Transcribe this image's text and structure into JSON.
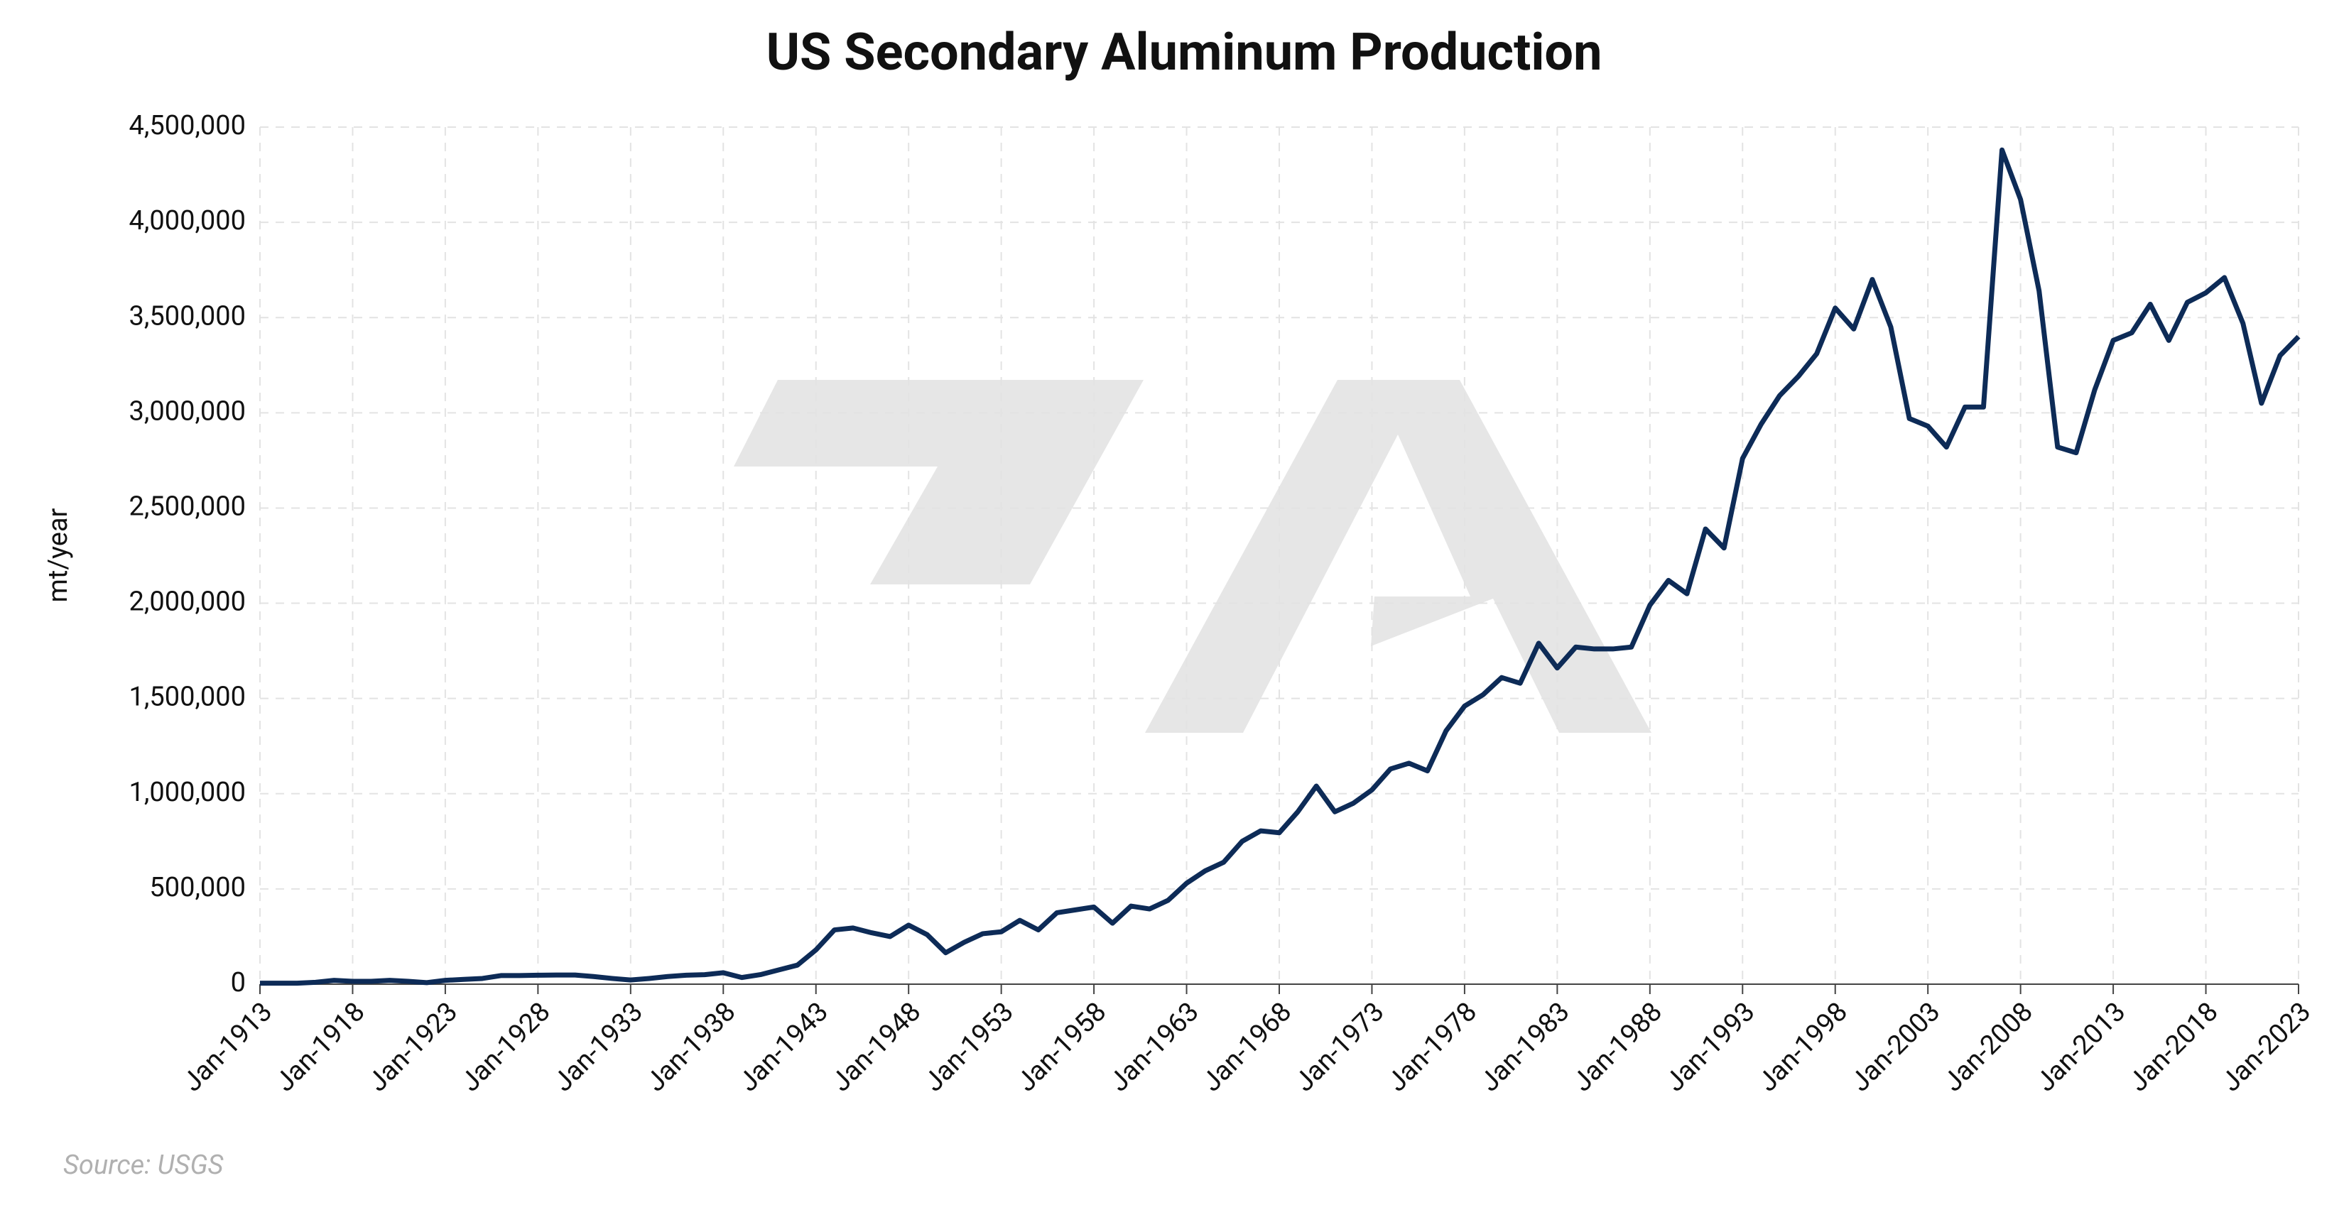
{
  "chart_data": {
    "type": "line",
    "title": "US Secondary Aluminum Production",
    "y_label": "mt/year",
    "source": "Source: USGS",
    "categories": [
      "Jan-1913",
      null,
      null,
      null,
      null,
      "Jan-1918",
      null,
      null,
      null,
      null,
      "Jan-1923",
      null,
      null,
      null,
      null,
      "Jan-1928",
      null,
      null,
      null,
      null,
      "Jan-1933",
      null,
      null,
      null,
      null,
      "Jan-1938",
      null,
      null,
      null,
      null,
      "Jan-1943",
      null,
      null,
      null,
      null,
      "Jan-1948",
      null,
      null,
      null,
      null,
      "Jan-1953",
      null,
      null,
      null,
      null,
      "Jan-1958",
      null,
      null,
      null,
      null,
      "Jan-1963",
      null,
      null,
      null,
      null,
      "Jan-1968",
      null,
      null,
      null,
      null,
      "Jan-1973",
      null,
      null,
      null,
      null,
      "Jan-1978",
      null,
      null,
      null,
      null,
      "Jan-1983",
      null,
      null,
      null,
      null,
      "Jan-1988",
      null,
      null,
      null,
      null,
      "Jan-1993",
      null,
      null,
      null,
      null,
      "Jan-1998",
      null,
      null,
      null,
      null,
      "Jan-2003",
      null,
      null,
      null,
      null,
      "Jan-2008",
      null,
      null,
      null,
      null,
      "Jan-2013",
      null,
      null,
      null,
      null,
      "Jan-2018",
      null,
      null,
      null,
      null,
      "Jan-2023"
    ],
    "series": [
      {
        "name": "US Secondary Aluminum Production",
        "color": "#0d2b57",
        "values": [
          5000,
          5000,
          5000,
          10000,
          20000,
          15000,
          15000,
          20000,
          15000,
          8000,
          20000,
          25000,
          30000,
          45000,
          45000,
          47000,
          48000,
          48000,
          40000,
          30000,
          22000,
          30000,
          40000,
          47000,
          50000,
          60000,
          35000,
          50000,
          75000,
          100000,
          180000,
          285000,
          295000,
          270000,
          250000,
          310000,
          260000,
          165000,
          220000,
          265000,
          275000,
          335000,
          285000,
          375000,
          390000,
          405000,
          320000,
          410000,
          395000,
          440000,
          530000,
          595000,
          640000,
          750000,
          805000,
          795000,
          905000,
          1040000,
          905000,
          950000,
          1020000,
          1130000,
          1160000,
          1120000,
          1330000,
          1460000,
          1520000,
          1610000,
          1580000,
          1790000,
          1660000,
          1770000,
          1760000,
          1760000,
          1770000,
          1990000,
          2120000,
          2050000,
          2390000,
          2290000,
          2760000,
          2940000,
          3090000,
          3190000,
          3310000,
          3550000,
          3440000,
          3700000,
          3450000,
          2970000,
          2930000,
          2820000,
          3030000,
          3030000,
          4380000,
          4120000,
          3640000,
          2820000,
          2790000,
          3120000,
          3380000,
          3420000,
          3570000,
          3380000,
          3580000,
          3630000,
          3710000,
          3470000,
          3050000,
          3300000,
          3400000
        ]
      }
    ],
    "ylim": [
      0,
      4500000
    ],
    "yticks": [
      0,
      {
        "value": 500000,
        "label": "500,000"
      },
      {
        "value": 1000000,
        "label": "1,000,000"
      },
      {
        "value": 1500000,
        "label": "1,500,000"
      },
      {
        "value": 2000000,
        "label": "2,000,000"
      },
      {
        "value": 2500000,
        "label": "2,500,000"
      },
      {
        "value": 3000000,
        "label": "3,000,000"
      },
      {
        "value": 3500000,
        "label": "3,500,000"
      },
      {
        "value": 4000000,
        "label": "4,000,000"
      },
      {
        "value": 4500000,
        "label": "4,500,000"
      }
    ],
    "grid": true
  }
}
